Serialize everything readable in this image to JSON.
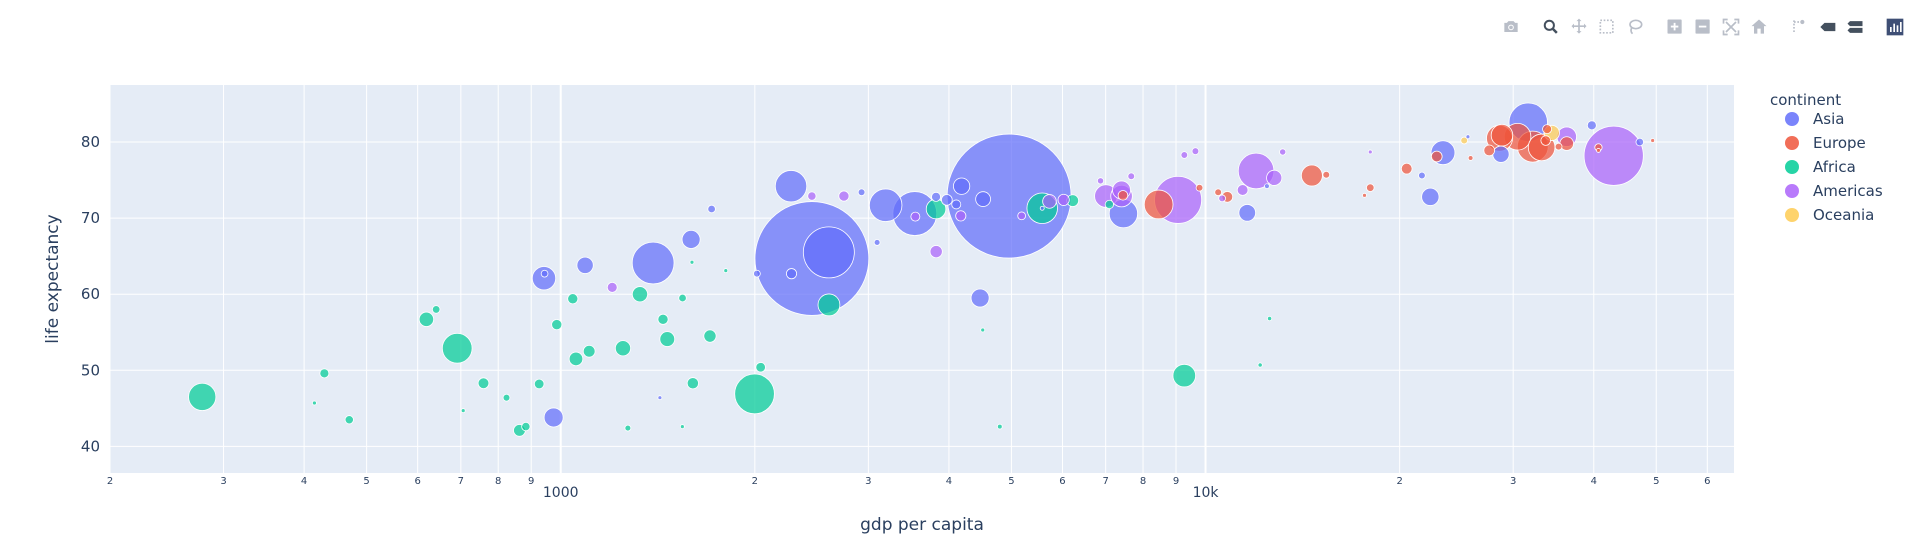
{
  "modebar": {
    "buttons": [
      {
        "group": 1,
        "icon": "camera-icon",
        "name": "download-plot-button"
      },
      {
        "group": 2,
        "icon": "zoom-icon",
        "name": "zoom-button",
        "active": true
      },
      {
        "group": 2,
        "icon": "pan-icon",
        "name": "pan-button"
      },
      {
        "group": 2,
        "icon": "box-select-icon",
        "name": "box-select-button"
      },
      {
        "group": 2,
        "icon": "lasso-select-icon",
        "name": "lasso-select-button"
      },
      {
        "group": 3,
        "icon": "zoom-in-icon",
        "name": "zoom-in-button"
      },
      {
        "group": 3,
        "icon": "zoom-out-icon",
        "name": "zoom-out-button"
      },
      {
        "group": 3,
        "icon": "autoscale-icon",
        "name": "autoscale-button"
      },
      {
        "group": 3,
        "icon": "home-icon",
        "name": "reset-axes-button"
      },
      {
        "group": 4,
        "icon": "spike-lines-icon",
        "name": "spike-lines-button"
      },
      {
        "group": 4,
        "icon": "hover-closest-icon",
        "name": "hover-closest-button"
      },
      {
        "group": 4,
        "icon": "hover-compare-icon",
        "name": "hover-compare-button"
      },
      {
        "group": 5,
        "icon": "plotly-logo-icon",
        "name": "plotly-logo"
      }
    ]
  },
  "chart_data": {
    "type": "scatter",
    "title": "",
    "xlabel": "gdp per capita",
    "ylabel": "life expectancy",
    "x_scale": "log",
    "xlim": [
      200,
      66000
    ],
    "ylim": [
      36.5,
      87.5
    ],
    "y_ticks": [
      40,
      50,
      60,
      70,
      80
    ],
    "x_ticks": [
      {
        "v": 200,
        "label": "2"
      },
      {
        "v": 300,
        "label": "3"
      },
      {
        "v": 400,
        "label": "4"
      },
      {
        "v": 500,
        "label": "5"
      },
      {
        "v": 600,
        "label": "6"
      },
      {
        "v": 700,
        "label": "7"
      },
      {
        "v": 800,
        "label": "8"
      },
      {
        "v": 900,
        "label": "9"
      },
      {
        "v": 1000,
        "label": "1000",
        "major": true
      },
      {
        "v": 2000,
        "label": "2"
      },
      {
        "v": 3000,
        "label": "3"
      },
      {
        "v": 4000,
        "label": "4"
      },
      {
        "v": 5000,
        "label": "5"
      },
      {
        "v": 6000,
        "label": "6"
      },
      {
        "v": 7000,
        "label": "7"
      },
      {
        "v": 8000,
        "label": "8"
      },
      {
        "v": 9000,
        "label": "9"
      },
      {
        "v": 10000,
        "label": "10k",
        "major": true
      },
      {
        "v": 20000,
        "label": "2"
      },
      {
        "v": 30000,
        "label": "3"
      },
      {
        "v": 40000,
        "label": "4"
      },
      {
        "v": 50000,
        "label": "5"
      },
      {
        "v": 60000,
        "label": "6"
      }
    ],
    "grid": true,
    "bubble_size": "population",
    "legend": {
      "title": "continent",
      "placement": "right"
    },
    "series": [
      {
        "name": "Asia",
        "color": "#636efa",
        "points": [
          [
            4959,
            72.9,
            1318
          ],
          [
            2452,
            64.7,
            1110
          ],
          [
            2605,
            65.5,
            223
          ],
          [
            3541,
            70.6,
            165
          ],
          [
            1391,
            64.1,
            150
          ],
          [
            3191,
            71.7,
            91
          ],
          [
            31656,
            82.6,
            127
          ],
          [
            942,
            62.1,
            47
          ],
          [
            1593,
            67.2,
            28
          ],
          [
            2276,
            74.2,
            85
          ],
          [
            975,
            43.8,
            31
          ],
          [
            1091,
            63.8,
            23
          ],
          [
            11606,
            70.7,
            24
          ],
          [
            7458,
            70.6,
            69
          ],
          [
            4471,
            59.5,
            28
          ],
          [
            4185,
            74.2,
            23
          ],
          [
            23348,
            78.6,
            49
          ],
          [
            39725,
            82.2,
            7
          ],
          [
            47143,
            80.0,
            5
          ],
          [
            28718,
            78.4,
            23
          ],
          [
            22316,
            72.8,
            26
          ],
          [
            2280,
            62.7,
            9
          ],
          [
            3970,
            72.4,
            10
          ],
          [
            4519,
            72.5,
            19
          ],
          [
            4106,
            71.8,
            7
          ],
          [
            2928,
            73.4,
            4
          ],
          [
            25523,
            80.7,
            0.7
          ],
          [
            12452,
            74.2,
            2
          ],
          [
            5581,
            71.3,
            1
          ],
          [
            3095,
            66.8,
            3
          ],
          [
            1714,
            71.2,
            5
          ],
          [
            1425,
            46.4,
            1
          ],
          [
            3820,
            72.8,
            7
          ],
          [
            21655,
            75.6,
            4
          ],
          [
            944,
            62.7,
            4
          ],
          [
            2015,
            62.7,
            4
          ]
        ]
      },
      {
        "name": "Europe",
        "color": "#ef553b",
        "points": [
          [
            32170,
            79.4,
            82
          ],
          [
            30470,
            80.7,
            61
          ],
          [
            33203,
            79.3,
            61
          ],
          [
            28570,
            80.5,
            58
          ],
          [
            28821,
            80.9,
            40
          ],
          [
            8458,
            71.8,
            71
          ],
          [
            36319,
            79.8,
            16
          ],
          [
            33692,
            80.2,
            8
          ],
          [
            40676,
            79.3,
            4.6
          ],
          [
            49357,
            80.2,
            0.3
          ],
          [
            10808,
            72.8,
            10
          ],
          [
            20510,
            76.5,
            10
          ],
          [
            14619,
            75.6,
            38
          ],
          [
            22833,
            78.1,
            10
          ],
          [
            18009,
            74.0,
            5
          ],
          [
            27538,
            78.9,
            10
          ],
          [
            33860,
            81.7,
            7
          ],
          [
            35278,
            79.4,
            4
          ],
          [
            25768,
            77.9,
            2
          ],
          [
            9787,
            74.0,
            4
          ],
          [
            7446,
            73.0,
            8
          ],
          [
            10461,
            73.4,
            4
          ],
          [
            15390,
            75.7,
            4
          ],
          [
            17641,
            73.0,
            1.3
          ],
          [
            40676,
            78.9,
            0.2
          ]
        ]
      },
      {
        "name": "Africa",
        "color": "#00cc96",
        "points": [
          [
            278,
            46.5,
            64
          ],
          [
            1998,
            46.9,
            135
          ],
          [
            5581,
            71.3,
            80
          ],
          [
            2606,
            58.6,
            41
          ],
          [
            691,
            52.9,
            76
          ],
          [
            1463,
            54.1,
            19
          ],
          [
            9269,
            49.3,
            44
          ],
          [
            1044,
            59.4,
            9
          ],
          [
            863,
            42.1,
            12
          ],
          [
            1249,
            52.9,
            20
          ],
          [
            1107,
            52.5,
            12
          ],
          [
            3820,
            71.2,
            33
          ],
          [
            619,
            56.7,
            18
          ],
          [
            6223,
            72.3,
            12
          ],
          [
            1327,
            60.0,
            20
          ],
          [
            1056,
            51.5,
            16
          ],
          [
            986,
            56.0,
            9
          ],
          [
            759,
            48.3,
            10
          ],
          [
            883,
            42.6,
            6
          ],
          [
            4797,
            42.6,
            2
          ],
          [
            1544,
            42.6,
            1
          ],
          [
            1603,
            48.3,
            11
          ],
          [
            2042,
            50.4,
            8
          ],
          [
            1441,
            56.7,
            9
          ],
          [
            1545,
            59.5,
            5
          ],
          [
            12570,
            56.8,
            1.6
          ],
          [
            7093,
            71.8,
            6
          ],
          [
            1271,
            42.4,
            3
          ],
          [
            1704,
            54.5,
            13
          ],
          [
            1803,
            63.1,
            0.8
          ],
          [
            430,
            49.6,
            7
          ],
          [
            470,
            43.5,
            6
          ],
          [
            641,
            58.0,
            5
          ],
          [
            824,
            46.4,
            4
          ],
          [
            926,
            48.2,
            8
          ],
          [
            4513,
            55.3,
            1.2
          ],
          [
            12154,
            50.7,
            1.6
          ],
          [
            1598,
            64.2,
            1.1
          ],
          [
            415,
            45.7,
            1.4
          ],
          [
            706,
            44.7,
            1
          ]
        ]
      },
      {
        "name": "Americas",
        "color": "#ab63fa",
        "points": [
          [
            42952,
            78.2,
            301
          ],
          [
            9066,
            72.4,
            190
          ],
          [
            11978,
            76.2,
            109
          ],
          [
            7007,
            72.9,
            44
          ],
          [
            7409,
            72.9,
            40
          ],
          [
            12779,
            75.3,
            20
          ],
          [
            36319,
            80.7,
            33
          ],
          [
            7408,
            73.7,
            28
          ],
          [
            3822,
            65.6,
            13
          ],
          [
            5728,
            72.2,
            16
          ],
          [
            2749,
            72.9,
            9
          ],
          [
            11416,
            73.7,
            10
          ],
          [
            9645,
            78.8,
            4
          ],
          [
            6025,
            72.4,
            11
          ],
          [
            1202,
            60.9,
            8.5
          ],
          [
            4173,
            70.3,
            9
          ],
          [
            3548,
            70.2,
            7
          ],
          [
            2452,
            72.9,
            6
          ],
          [
            7670,
            75.5,
            4
          ],
          [
            6873,
            74.9,
            3.4
          ],
          [
            10611,
            72.6,
            4
          ],
          [
            13172,
            78.7,
            3.4
          ],
          [
            18009,
            78.7,
            1.1
          ],
          [
            9270,
            78.3,
            3.9
          ],
          [
            5186,
            70.3,
            5.3
          ]
        ]
      },
      {
        "name": "Oceania",
        "color": "#fecb52",
        "points": [
          [
            34435,
            81.2,
            20
          ],
          [
            25185,
            80.2,
            4
          ]
        ]
      }
    ]
  }
}
